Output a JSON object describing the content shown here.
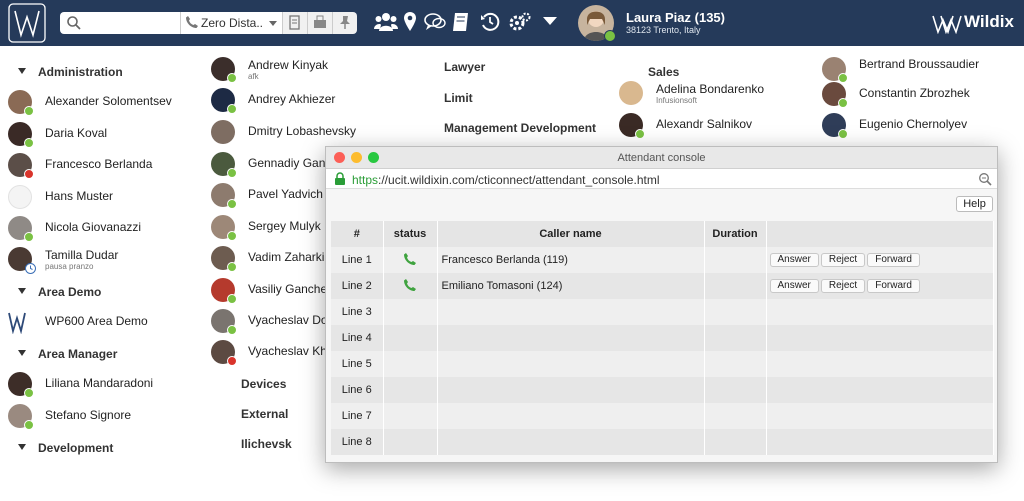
{
  "topbar": {
    "dial_value": "Zero Dista...",
    "user_name": "Laura Piaz (135)",
    "user_location": "38123 Trento, Italy",
    "brand": "Wildix",
    "icons": [
      "search-icon",
      "phone-icon",
      "transfer-icon",
      "fax-icon",
      "pin-icon",
      "users-icon",
      "location-icon",
      "chat-icon",
      "notes-icon",
      "history-icon",
      "settings-icon",
      "dropdown-icon"
    ]
  },
  "col1": {
    "groups": [
      "Administration",
      "Area Demo",
      "Area Manager",
      "Development"
    ],
    "contacts": [
      {
        "name": "Alexander Solomentsev"
      },
      {
        "name": "Daria Koval"
      },
      {
        "name": "Francesco Berlanda"
      },
      {
        "name": "Hans Muster"
      },
      {
        "name": "Nicola Giovanazzi"
      },
      {
        "name": "Tamilla Dudar",
        "sub": "pausa pranzo"
      },
      {
        "name": "WP600 Area Demo"
      },
      {
        "name": "Liliana Mandaradoni"
      },
      {
        "name": "Stefano Signore"
      }
    ]
  },
  "col2": {
    "contacts": [
      {
        "name": "Andrew Kinyak",
        "sub": "afk"
      },
      {
        "name": "Andrey Akhiezer"
      },
      {
        "name": "Dmitry Lobashevsky"
      },
      {
        "name": "Gennadiy Gan"
      },
      {
        "name": "Pavel Yadvich"
      },
      {
        "name": "Sergey Mulyk"
      },
      {
        "name": "Vadim Zaharki"
      },
      {
        "name": "Vasiliy Ganche"
      },
      {
        "name": "Vyacheslav Do"
      },
      {
        "name": "Vyacheslav Kh"
      }
    ],
    "groups": [
      "Devices",
      "External",
      "Ilichevsk"
    ]
  },
  "col3": {
    "groups": [
      "Lawyer",
      "Limit",
      "Management Development"
    ]
  },
  "col4": {
    "group": "Sales",
    "contacts": [
      {
        "name": "Adelina Bondarenko",
        "sub": "Infusionsoft"
      },
      {
        "name": "Alexandr Salnikov"
      }
    ]
  },
  "col5": {
    "contacts": [
      {
        "name": "Bertrand Broussaudier"
      },
      {
        "name": "Constantin Zbrozhek"
      },
      {
        "name": "Eugenio Chernolyev"
      }
    ]
  },
  "console": {
    "title": "Attendant console",
    "url_scheme": "https",
    "url_rest": "://ucit.wildixin.com/cticonnect/attendant_console.html",
    "help": "Help",
    "columns": [
      "#",
      "status",
      "Caller name",
      "Duration",
      ""
    ],
    "lines": [
      {
        "line": "Line 1",
        "caller": "Francesco Berlanda (119)",
        "active": true
      },
      {
        "line": "Line 2",
        "caller": "Emiliano Tomasoni (124)",
        "active": true
      },
      {
        "line": "Line 3",
        "caller": "",
        "active": false
      },
      {
        "line": "Line 4",
        "caller": "",
        "active": false
      },
      {
        "line": "Line 5",
        "caller": "",
        "active": false
      },
      {
        "line": "Line 6",
        "caller": "",
        "active": false
      },
      {
        "line": "Line 7",
        "caller": "",
        "active": false
      },
      {
        "line": "Line 8",
        "caller": "",
        "active": false
      }
    ],
    "actions": {
      "answer": "Answer",
      "reject": "Reject",
      "forward": "Forward"
    }
  }
}
